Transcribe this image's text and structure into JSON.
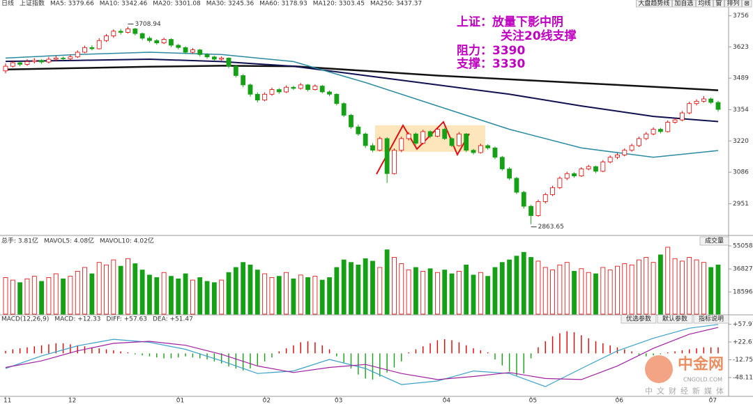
{
  "toolbar": [
    "大盘趋势线",
    "加自选",
    "均线",
    "窗",
    "排列",
    "⊠"
  ],
  "watermark": {
    "name": "中金网",
    "url": "CNGOLD.COM",
    "slogan": "中文财经新媒体"
  },
  "chart_data": [
    {
      "type": "candlestick",
      "header": [
        {
          "text": "日线",
          "color": "#333333"
        },
        {
          "text": "上证指数",
          "color": "#333333"
        },
        {
          "text": "MA5: 3379.66",
          "color": "#666666"
        },
        {
          "text": "MA10: 3342.46",
          "color": "#c040c0"
        },
        {
          "text": "MA20: 3301.08",
          "color": "#e890b8"
        },
        {
          "text": "MA30: 3245.36",
          "color": "#2a8a3a"
        },
        {
          "text": "MA60: 3178.93",
          "color": "#2a8aa0"
        },
        {
          "text": "MA120: 3303.45",
          "color": "#101050"
        },
        {
          "text": "MA250: 3437.37",
          "color": "#222222"
        }
      ],
      "annotations": [
        "上证：放量下影中阴",
        "关注20线支撑",
        "阻力：3390",
        "支撑：3330"
      ],
      "categories": [
        "11",
        null,
        null,
        null,
        null,
        null,
        null,
        null,
        null,
        "12",
        null,
        null,
        null,
        null,
        null,
        null,
        null,
        null,
        null,
        null,
        null,
        null,
        null,
        null,
        "01",
        null,
        null,
        null,
        null,
        null,
        null,
        null,
        null,
        null,
        null,
        null,
        "02",
        null,
        null,
        null,
        null,
        null,
        null,
        null,
        null,
        null,
        "03",
        null,
        null,
        null,
        null,
        null,
        null,
        null,
        null,
        null,
        null,
        null,
        null,
        null,
        null,
        "04",
        null,
        null,
        null,
        null,
        null,
        null,
        null,
        null,
        null,
        null,
        null,
        "05",
        null,
        null,
        null,
        null,
        null,
        null,
        null,
        null,
        null,
        null,
        null,
        "06",
        null,
        null,
        null,
        null,
        null,
        null,
        null,
        null,
        null,
        null,
        null,
        null,
        "07",
        null
      ],
      "candles": [
        [
          3520,
          3552,
          3510,
          3540
        ],
        [
          3540,
          3565,
          3535,
          3555
        ],
        [
          3555,
          3560,
          3540,
          3548
        ],
        [
          3548,
          3570,
          3542,
          3560
        ],
        [
          3560,
          3575,
          3552,
          3565
        ],
        [
          3565,
          3570,
          3550,
          3558
        ],
        [
          3558,
          3580,
          3552,
          3570
        ],
        [
          3570,
          3585,
          3562,
          3575
        ],
        [
          3575,
          3582,
          3565,
          3572
        ],
        [
          3572,
          3590,
          3566,
          3580
        ],
        [
          3580,
          3608,
          3575,
          3600
        ],
        [
          3600,
          3628,
          3596,
          3620
        ],
        [
          3620,
          3630,
          3608,
          3615
        ],
        [
          3615,
          3660,
          3612,
          3650
        ],
        [
          3650,
          3678,
          3644,
          3670
        ],
        [
          3670,
          3698,
          3662,
          3690
        ],
        [
          3690,
          3700,
          3676,
          3685
        ],
        [
          3685,
          3708.94,
          3680,
          3700
        ],
        [
          3700,
          3704,
          3672,
          3680
        ],
        [
          3680,
          3684,
          3652,
          3660
        ],
        [
          3660,
          3668,
          3642,
          3650
        ],
        [
          3650,
          3656,
          3632,
          3640
        ],
        [
          3640,
          3662,
          3635,
          3655
        ],
        [
          3655,
          3660,
          3622,
          3630
        ],
        [
          3630,
          3636,
          3612,
          3620
        ],
        [
          3620,
          3625,
          3592,
          3600
        ],
        [
          3600,
          3618,
          3594,
          3610
        ],
        [
          3610,
          3614,
          3582,
          3590
        ],
        [
          3590,
          3596,
          3572,
          3580
        ],
        [
          3580,
          3586,
          3562,
          3570
        ],
        [
          3570,
          3582,
          3564,
          3575
        ],
        [
          3575,
          3578,
          3532,
          3540
        ],
        [
          3540,
          3545,
          3492,
          3500
        ],
        [
          3500,
          3506,
          3450,
          3460
        ],
        [
          3460,
          3466,
          3410,
          3420
        ],
        [
          3420,
          3428,
          3385,
          3395
        ],
        [
          3395,
          3428,
          3390,
          3420
        ],
        [
          3420,
          3448,
          3414,
          3440
        ],
        [
          3440,
          3446,
          3422,
          3430
        ],
        [
          3430,
          3458,
          3425,
          3450
        ],
        [
          3450,
          3456,
          3438,
          3445
        ],
        [
          3445,
          3468,
          3440,
          3460
        ],
        [
          3460,
          3464,
          3432,
          3440
        ],
        [
          3440,
          3462,
          3436,
          3455
        ],
        [
          3455,
          3460,
          3424,
          3430
        ],
        [
          3430,
          3436,
          3412,
          3420
        ],
        [
          3420,
          3424,
          3372,
          3380
        ],
        [
          3380,
          3386,
          3322,
          3330
        ],
        [
          3330,
          3336,
          3272,
          3280
        ],
        [
          3280,
          3290,
          3242,
          3250
        ],
        [
          3250,
          3256,
          3190,
          3200
        ],
        [
          3200,
          3210,
          3172,
          3180
        ],
        [
          3180,
          3238,
          3176,
          3230
        ],
        [
          3230,
          3236,
          3040,
          3080
        ],
        [
          3080,
          3188,
          3076,
          3180
        ],
        [
          3180,
          3238,
          3172,
          3230
        ],
        [
          3230,
          3258,
          3222,
          3250
        ],
        [
          3250,
          3256,
          3202,
          3210
        ],
        [
          3210,
          3268,
          3205,
          3260
        ],
        [
          3260,
          3265,
          3232,
          3240
        ],
        [
          3240,
          3278,
          3236,
          3270
        ],
        [
          3270,
          3276,
          3224,
          3230
        ],
        [
          3230,
          3236,
          3194,
          3200
        ],
        [
          3200,
          3258,
          3196,
          3250
        ],
        [
          3250,
          3254,
          3172,
          3180
        ],
        [
          3180,
          3186,
          3162,
          3170
        ],
        [
          3170,
          3208,
          3166,
          3200
        ],
        [
          3200,
          3206,
          3182,
          3190
        ],
        [
          3190,
          3196,
          3142,
          3150
        ],
        [
          3150,
          3156,
          3092,
          3100
        ],
        [
          3100,
          3108,
          3052,
          3060
        ],
        [
          3060,
          3066,
          2992,
          3000
        ],
        [
          3000,
          3006,
          2930,
          2940
        ],
        [
          2940,
          2946,
          2863.65,
          2900
        ],
        [
          2900,
          2968,
          2895,
          2960
        ],
        [
          2960,
          2998,
          2952,
          2990
        ],
        [
          2990,
          3028,
          2984,
          3020
        ],
        [
          3020,
          3068,
          3014,
          3060
        ],
        [
          3060,
          3088,
          3052,
          3080
        ],
        [
          3080,
          3086,
          3062,
          3070
        ],
        [
          3070,
          3108,
          3066,
          3100
        ],
        [
          3100,
          3118,
          3094,
          3110
        ],
        [
          3110,
          3114,
          3082,
          3090
        ],
        [
          3090,
          3138,
          3086,
          3130
        ],
        [
          3130,
          3158,
          3124,
          3150
        ],
        [
          3150,
          3168,
          3142,
          3160
        ],
        [
          3160,
          3188,
          3154,
          3180
        ],
        [
          3180,
          3208,
          3174,
          3200
        ],
        [
          3200,
          3238,
          3194,
          3230
        ],
        [
          3230,
          3258,
          3224,
          3250
        ],
        [
          3250,
          3278,
          3244,
          3270
        ],
        [
          3270,
          3276,
          3252,
          3260
        ],
        [
          3260,
          3308,
          3256,
          3300
        ],
        [
          3300,
          3318,
          3294,
          3310
        ],
        [
          3310,
          3348,
          3304,
          3340
        ],
        [
          3340,
          3388,
          3334,
          3380
        ],
        [
          3380,
          3398,
          3372,
          3390
        ],
        [
          3390,
          3412,
          3384,
          3400
        ],
        [
          3400,
          3406,
          3378,
          3385
        ],
        [
          3385,
          3392,
          3345,
          3355
        ]
      ],
      "up_color": "#e00000",
      "down_color": "#16a016",
      "series": [
        {
          "color": "#111111",
          "width": 2.5,
          "x": [
            0,
            10,
            20,
            30,
            40,
            50,
            60,
            70,
            80,
            90,
            99
          ],
          "values": [
            3526,
            3532,
            3538,
            3542,
            3540,
            3520,
            3500,
            3484,
            3468,
            3452,
            3437
          ]
        },
        {
          "color": "#101050",
          "width": 2,
          "x": [
            0,
            10,
            20,
            30,
            40,
            50,
            60,
            70,
            80,
            90,
            99
          ],
          "values": [
            3561,
            3565,
            3570,
            3560,
            3540,
            3500,
            3460,
            3420,
            3370,
            3325,
            3303
          ]
        },
        {
          "color": "#2a8aa0",
          "width": 1.5,
          "x": [
            0,
            10,
            20,
            30,
            40,
            50,
            60,
            70,
            80,
            90,
            99
          ],
          "values": [
            3575,
            3590,
            3600,
            3590,
            3560,
            3470,
            3370,
            3270,
            3190,
            3150,
            3179
          ]
        }
      ],
      "ylim": [
        2827,
        3782
      ],
      "yticks": [
        3756,
        3623,
        3489,
        3354,
        3220,
        3086,
        2951
      ]
    },
    {
      "type": "bar",
      "header": [
        {
          "text": "总手: 3.81亿",
          "color": "#333333"
        },
        {
          "text": "MAVOL5: 4.08亿",
          "color": "#666666"
        },
        {
          "text": "MAVOL10: 4.02亿",
          "color": "#c040c0"
        }
      ],
      "buttons": [
        "成交量"
      ],
      "values": [
        30000,
        28000,
        26000,
        29000,
        31000,
        27000,
        30000,
        33000,
        29000,
        31000,
        35000,
        38000,
        33000,
        42000,
        40000,
        44000,
        39000,
        45000,
        41000,
        36000,
        32000,
        30000,
        34000,
        31000,
        29000,
        33000,
        28000,
        30000,
        27000,
        26000,
        28000,
        34000,
        38000,
        42000,
        40000,
        36000,
        33000,
        30000,
        31000,
        34000,
        29000,
        32000,
        30000,
        31000,
        28000,
        30000,
        38000,
        44000,
        42000,
        40000,
        45000,
        43000,
        38000,
        52000,
        46000,
        41000,
        36000,
        38000,
        35000,
        37000,
        34000,
        36000,
        33000,
        35000,
        40000,
        32000,
        34000,
        31000,
        38000,
        42000,
        44000,
        47000,
        50000,
        46000,
        43000,
        38000,
        36000,
        40000,
        42000,
        35000,
        37000,
        34000,
        33000,
        38000,
        36000,
        39000,
        41000,
        40000,
        44000,
        46000,
        42000,
        48000,
        54000,
        45000,
        43000,
        46000,
        44000,
        42000,
        38000,
        40000
      ],
      "ylim": [
        1000,
        59500
      ],
      "yticks": [
        55058,
        36827,
        18596
      ]
    },
    {
      "type": "macd",
      "header": [
        {
          "text": "MACD(12,26,9)",
          "color": "#888888"
        },
        {
          "text": "MACD: +12.33",
          "color": "#333333"
        },
        {
          "text": "DIFF: +57.63",
          "color": "#2a8aa0"
        },
        {
          "text": "DEA: +51.47",
          "color": "#a020a0"
        }
      ],
      "buttons": [
        "优选参数",
        "默认参数",
        "指标说明"
      ],
      "values": [
        5,
        8,
        10,
        12,
        14,
        16,
        18,
        20,
        20,
        18,
        16,
        14,
        12,
        10,
        8,
        6,
        4,
        2,
        -2,
        -4,
        -6,
        -8,
        -10,
        -10,
        -8,
        -6,
        -8,
        -10,
        -12,
        -16,
        -20,
        -26,
        -30,
        -34,
        -30,
        -24,
        -16,
        -8,
        4,
        10,
        16,
        22,
        24,
        22,
        16,
        8,
        -6,
        -18,
        -30,
        -42,
        -50,
        -52,
        -46,
        -38,
        -28,
        -16,
        2,
        8,
        14,
        20,
        26,
        28,
        26,
        22,
        16,
        10,
        6,
        2,
        -12,
        -24,
        -36,
        -44,
        -40,
        -10,
        12,
        24,
        34,
        40,
        44,
        42,
        36,
        30,
        24,
        20,
        16,
        12,
        8,
        4,
        -4,
        -6,
        -4,
        -2,
        2,
        4,
        6,
        8,
        10,
        12,
        12,
        12
      ],
      "up_color": "#e00000",
      "down_color": "#16a016",
      "series": [
        {
          "color": "#3aa0c8",
          "x": [
            0,
            5,
            10,
            15,
            20,
            25,
            30,
            35,
            40,
            45,
            50,
            55,
            60,
            65,
            70,
            75,
            80,
            85,
            90,
            95,
            99
          ],
          "values": [
            -30,
            -5,
            15,
            28,
            22,
            8,
            -15,
            -40,
            -35,
            -12,
            -30,
            -62,
            -55,
            -35,
            -40,
            -66,
            -30,
            5,
            30,
            50,
            57.63
          ]
        },
        {
          "color": "#a020a0",
          "x": [
            0,
            5,
            10,
            15,
            20,
            25,
            30,
            35,
            40,
            45,
            50,
            55,
            60,
            65,
            70,
            75,
            80,
            85,
            90,
            95,
            99
          ],
          "values": [
            -28,
            -15,
            5,
            20,
            24,
            16,
            -2,
            -25,
            -38,
            -28,
            -22,
            -40,
            -52,
            -46,
            -38,
            -50,
            -52,
            -25,
            10,
            38,
            51.47
          ]
        }
      ],
      "ylim": [
        -84,
        71
      ],
      "yticks": [
        {
          "value": 57.97,
          "label": "+57.97"
        },
        {
          "value": 22.61,
          "label": "+22.61"
        },
        {
          "value": -12.75,
          "label": "-12.75"
        },
        {
          "value": -48.11,
          "label": "-48.11"
        }
      ]
    }
  ]
}
